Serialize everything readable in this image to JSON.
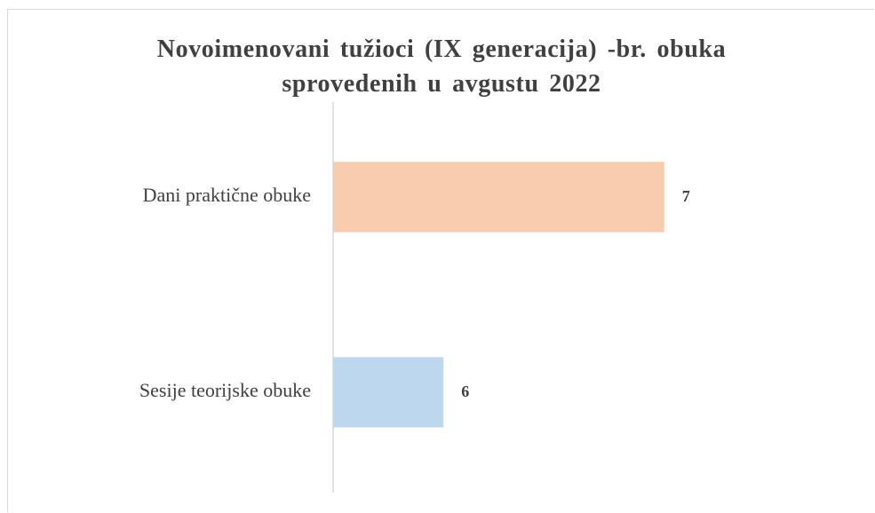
{
  "chart_data": {
    "type": "bar",
    "orientation": "horizontal",
    "title": "Novoimenovani tužioci (IX generacija) -br. obuka sprovedenih u avgustu 2022",
    "categories": [
      "Dani praktične obuke",
      "Sesije teorijske obuke"
    ],
    "values": [
      7,
      6
    ],
    "colors": [
      "#f8cbad",
      "#bdd7ee"
    ],
    "xlim": [
      5.5,
      7.5
    ]
  }
}
